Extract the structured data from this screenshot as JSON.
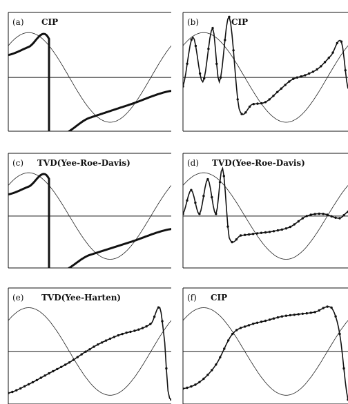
{
  "figure": {
    "colors": {
      "frame": "#111111",
      "exact": "#222222",
      "numerical": "#111111",
      "background": "#ffffff"
    }
  },
  "chart_data": [
    {
      "panel": "(a)",
      "method": "CIP",
      "type": "line",
      "xlim": [
        0,
        1
      ],
      "ylim": [
        -1.2,
        1.45
      ],
      "series": [
        {
          "role": "exact",
          "style": "thin",
          "function": "sin",
          "x": [
            0,
            0.125,
            0.25,
            0.375,
            0.5,
            0.625,
            0.75,
            0.875,
            1
          ],
          "y": [
            0.71,
            1.0,
            0.71,
            0,
            -0.71,
            -1.0,
            -0.71,
            0,
            0.71
          ]
        },
        {
          "role": "numerical",
          "style": "thick",
          "x": [
            0,
            0.125,
            0.25,
            0.2501,
            0.5,
            0.75,
            0.999,
            1
          ],
          "y": [
            0.5,
            0.68,
            0.86,
            -1.2,
            -0.9,
            -0.6,
            -0.3,
            -0.3
          ]
        }
      ]
    },
    {
      "panel": "(b)",
      "method": "CIP",
      "type": "line",
      "xlim": [
        0,
        1
      ],
      "ylim": [
        -1.2,
        1.45
      ],
      "series": [
        {
          "role": "exact",
          "style": "thin",
          "function": "sin",
          "x": [
            0,
            0.125,
            0.25,
            0.375,
            0.5,
            0.625,
            0.75,
            0.875,
            1
          ],
          "y": [
            0.71,
            1.0,
            0.71,
            0,
            -0.71,
            -1.0,
            -0.71,
            0,
            0.71
          ]
        },
        {
          "role": "numerical",
          "style": "dotted",
          "x": [
            0,
            0.06,
            0.12,
            0.18,
            0.22,
            0.28,
            0.34,
            0.42,
            0.5,
            0.58,
            0.66,
            0.74,
            0.82,
            0.9,
            0.96,
            1
          ],
          "y": [
            -0.2,
            0.9,
            -0.1,
            1.1,
            -0.1,
            1.35,
            -0.7,
            -0.6,
            -0.55,
            -0.3,
            -0.05,
            0.05,
            0.2,
            0.5,
            0.8,
            -0.25
          ]
        }
      ]
    },
    {
      "panel": "(c)",
      "method": "TVD(Yee-Roe-Davis)",
      "type": "line",
      "xlim": [
        0,
        1
      ],
      "ylim": [
        -1.2,
        1.45
      ],
      "series": [
        {
          "role": "exact",
          "style": "thin",
          "function": "sin",
          "x": [
            0,
            0.125,
            0.25,
            0.375,
            0.5,
            0.625,
            0.75,
            0.875,
            1
          ],
          "y": [
            0.71,
            1.0,
            0.71,
            0,
            -0.71,
            -1.0,
            -0.71,
            0,
            0.71
          ]
        },
        {
          "role": "numerical",
          "style": "thick",
          "x": [
            0,
            0.125,
            0.25,
            0.2501,
            0.5,
            0.75,
            0.999,
            1
          ],
          "y": [
            0.5,
            0.68,
            0.86,
            -1.2,
            -0.9,
            -0.6,
            -0.3,
            -0.3
          ]
        }
      ]
    },
    {
      "panel": "(d)",
      "method": "TVD(Yee-Roe-Davis)",
      "type": "line",
      "xlim": [
        0,
        1
      ],
      "ylim": [
        -1.2,
        1.45
      ],
      "series": [
        {
          "role": "exact",
          "style": "thin",
          "function": "sin",
          "x": [
            0,
            0.125,
            0.25,
            0.375,
            0.5,
            0.625,
            0.75,
            0.875,
            1
          ],
          "y": [
            0.71,
            1.0,
            0.71,
            0,
            -0.71,
            -1.0,
            -0.71,
            0,
            0.71
          ]
        },
        {
          "role": "numerical",
          "style": "dotted",
          "x": [
            0,
            0.05,
            0.1,
            0.15,
            0.2,
            0.24,
            0.28,
            0.35,
            0.45,
            0.55,
            0.65,
            0.75,
            0.85,
            0.95,
            1
          ],
          "y": [
            0.05,
            0.6,
            0.05,
            0.85,
            0.05,
            1.1,
            -0.5,
            -0.45,
            -0.4,
            -0.35,
            -0.25,
            0,
            0.05,
            -0.05,
            0.1
          ]
        }
      ]
    },
    {
      "panel": "(e)",
      "method": "TVD(Yee-Harten)",
      "type": "line",
      "xlim": [
        0,
        1
      ],
      "ylim": [
        -1.2,
        1.45
      ],
      "series": [
        {
          "role": "exact",
          "style": "thin",
          "function": "sin",
          "x": [
            0,
            0.125,
            0.25,
            0.375,
            0.5,
            0.625,
            0.75,
            0.875,
            1
          ],
          "y": [
            0.71,
            1.0,
            0.71,
            0,
            -0.71,
            -1.0,
            -0.71,
            0,
            0.71
          ]
        },
        {
          "role": "numerical",
          "style": "dotted",
          "x": [
            0,
            0.125,
            0.25,
            0.375,
            0.5,
            0.6,
            0.7,
            0.8,
            0.88,
            0.93,
            0.96,
            0.98,
            1
          ],
          "y": [
            -0.95,
            -0.75,
            -0.5,
            -0.25,
            0.05,
            0.25,
            0.4,
            0.5,
            0.65,
            1.0,
            0.2,
            -0.9,
            -1.1
          ]
        }
      ]
    },
    {
      "panel": "(f)",
      "method": "CIP",
      "type": "line",
      "xlim": [
        0,
        1
      ],
      "ylim": [
        -1.2,
        1.45
      ],
      "series": [
        {
          "role": "exact",
          "style": "thin",
          "function": "sin",
          "x": [
            0,
            0.125,
            0.25,
            0.375,
            0.5,
            0.625,
            0.75,
            0.875,
            1
          ],
          "y": [
            0.71,
            1.0,
            0.71,
            0,
            -0.71,
            -1.0,
            -0.71,
            0,
            0.71
          ]
        },
        {
          "role": "numerical",
          "style": "dotted",
          "x": [
            0,
            0.1,
            0.2,
            0.3,
            0.4,
            0.5,
            0.6,
            0.7,
            0.8,
            0.9,
            0.95,
            1
          ],
          "y": [
            -0.85,
            -0.7,
            -0.3,
            0.4,
            0.6,
            0.7,
            0.8,
            0.85,
            0.9,
            1.0,
            0.4,
            -1.1
          ]
        }
      ]
    }
  ]
}
